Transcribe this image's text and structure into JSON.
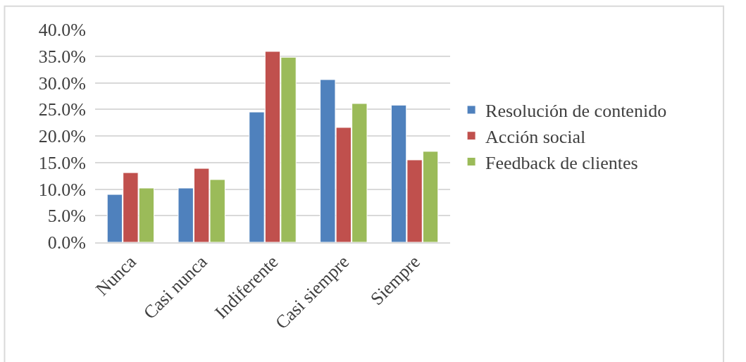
{
  "chart_data": {
    "type": "bar",
    "categories": [
      "Nunca",
      "Casi nunca",
      "Indiferente",
      "Casi siempre",
      "Siempre"
    ],
    "series": [
      {
        "name": "Resolución de contenido",
        "color": "#4f81bd",
        "values": [
          9.0,
          10.2,
          24.5,
          30.6,
          25.8
        ]
      },
      {
        "name": "Acción social",
        "color": "#c0504d",
        "values": [
          13.1,
          13.9,
          35.9,
          21.6,
          15.5
        ]
      },
      {
        "name": "Feedback de clientes",
        "color": "#9bbb59",
        "values": [
          10.2,
          11.8,
          34.8,
          26.1,
          17.1
        ]
      }
    ],
    "ylim": [
      0,
      40
    ],
    "yticks": [
      {
        "value": 0,
        "label": "0.0%"
      },
      {
        "value": 5,
        "label": "5.0%"
      },
      {
        "value": 10,
        "label": "10.0%"
      },
      {
        "value": 15,
        "label": "15.0%"
      },
      {
        "value": 20,
        "label": "20.0%"
      },
      {
        "value": 25,
        "label": "25.0%"
      },
      {
        "value": 30,
        "label": "30.0%"
      },
      {
        "value": 35,
        "label": "35.0%"
      },
      {
        "value": 40,
        "label": "40.0%"
      }
    ],
    "grid": "y",
    "legend": "right"
  }
}
